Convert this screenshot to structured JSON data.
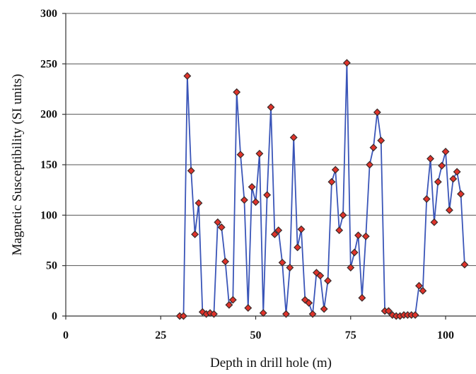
{
  "chart_data": {
    "type": "line",
    "title": "",
    "xlabel": "Depth in drill hole (m)",
    "ylabel": "Magnetic Susceptibility (SI units)",
    "xlim": [
      0,
      108
    ],
    "ylim": [
      0,
      300
    ],
    "xticks": [
      0,
      25,
      50,
      75,
      100
    ],
    "yticks": [
      0,
      50,
      100,
      150,
      200,
      250,
      300
    ],
    "grid": "horizontal",
    "legend": "none",
    "colors": {
      "line": "#3a55b8",
      "marker": "#e0332a"
    },
    "series": [
      {
        "x": [
          30,
          31,
          32,
          33,
          34,
          35,
          36,
          37,
          38,
          39,
          40,
          41,
          42,
          43,
          44,
          45,
          46,
          47,
          48,
          49,
          50,
          51,
          52,
          53,
          54,
          55,
          56,
          57,
          58,
          59,
          60,
          61,
          62,
          63,
          64,
          65,
          66,
          67,
          68,
          69,
          70,
          71,
          72,
          73,
          74,
          75,
          76,
          77,
          78,
          79,
          80,
          81,
          82,
          83,
          84,
          85,
          86,
          87,
          88,
          89,
          90,
          91,
          92,
          93,
          94,
          95,
          96,
          97,
          98,
          99,
          100,
          101,
          102,
          103,
          104,
          105
        ],
        "y": [
          0,
          0,
          238,
          144,
          81,
          112,
          4,
          2,
          3,
          2,
          93,
          88,
          54,
          11,
          16,
          222,
          160,
          115,
          8,
          128,
          113,
          161,
          3,
          120,
          207,
          81,
          85,
          53,
          2,
          48,
          177,
          68,
          86,
          16,
          13,
          2,
          43,
          40,
          7,
          35,
          133,
          145,
          85,
          100,
          251,
          48,
          63,
          80,
          18,
          79,
          150,
          167,
          202,
          174,
          5,
          5,
          1,
          0,
          0,
          1,
          1,
          1,
          1,
          30,
          25,
          116,
          156,
          93,
          133,
          149,
          163,
          105,
          136,
          143,
          121,
          51
        ]
      }
    ]
  }
}
